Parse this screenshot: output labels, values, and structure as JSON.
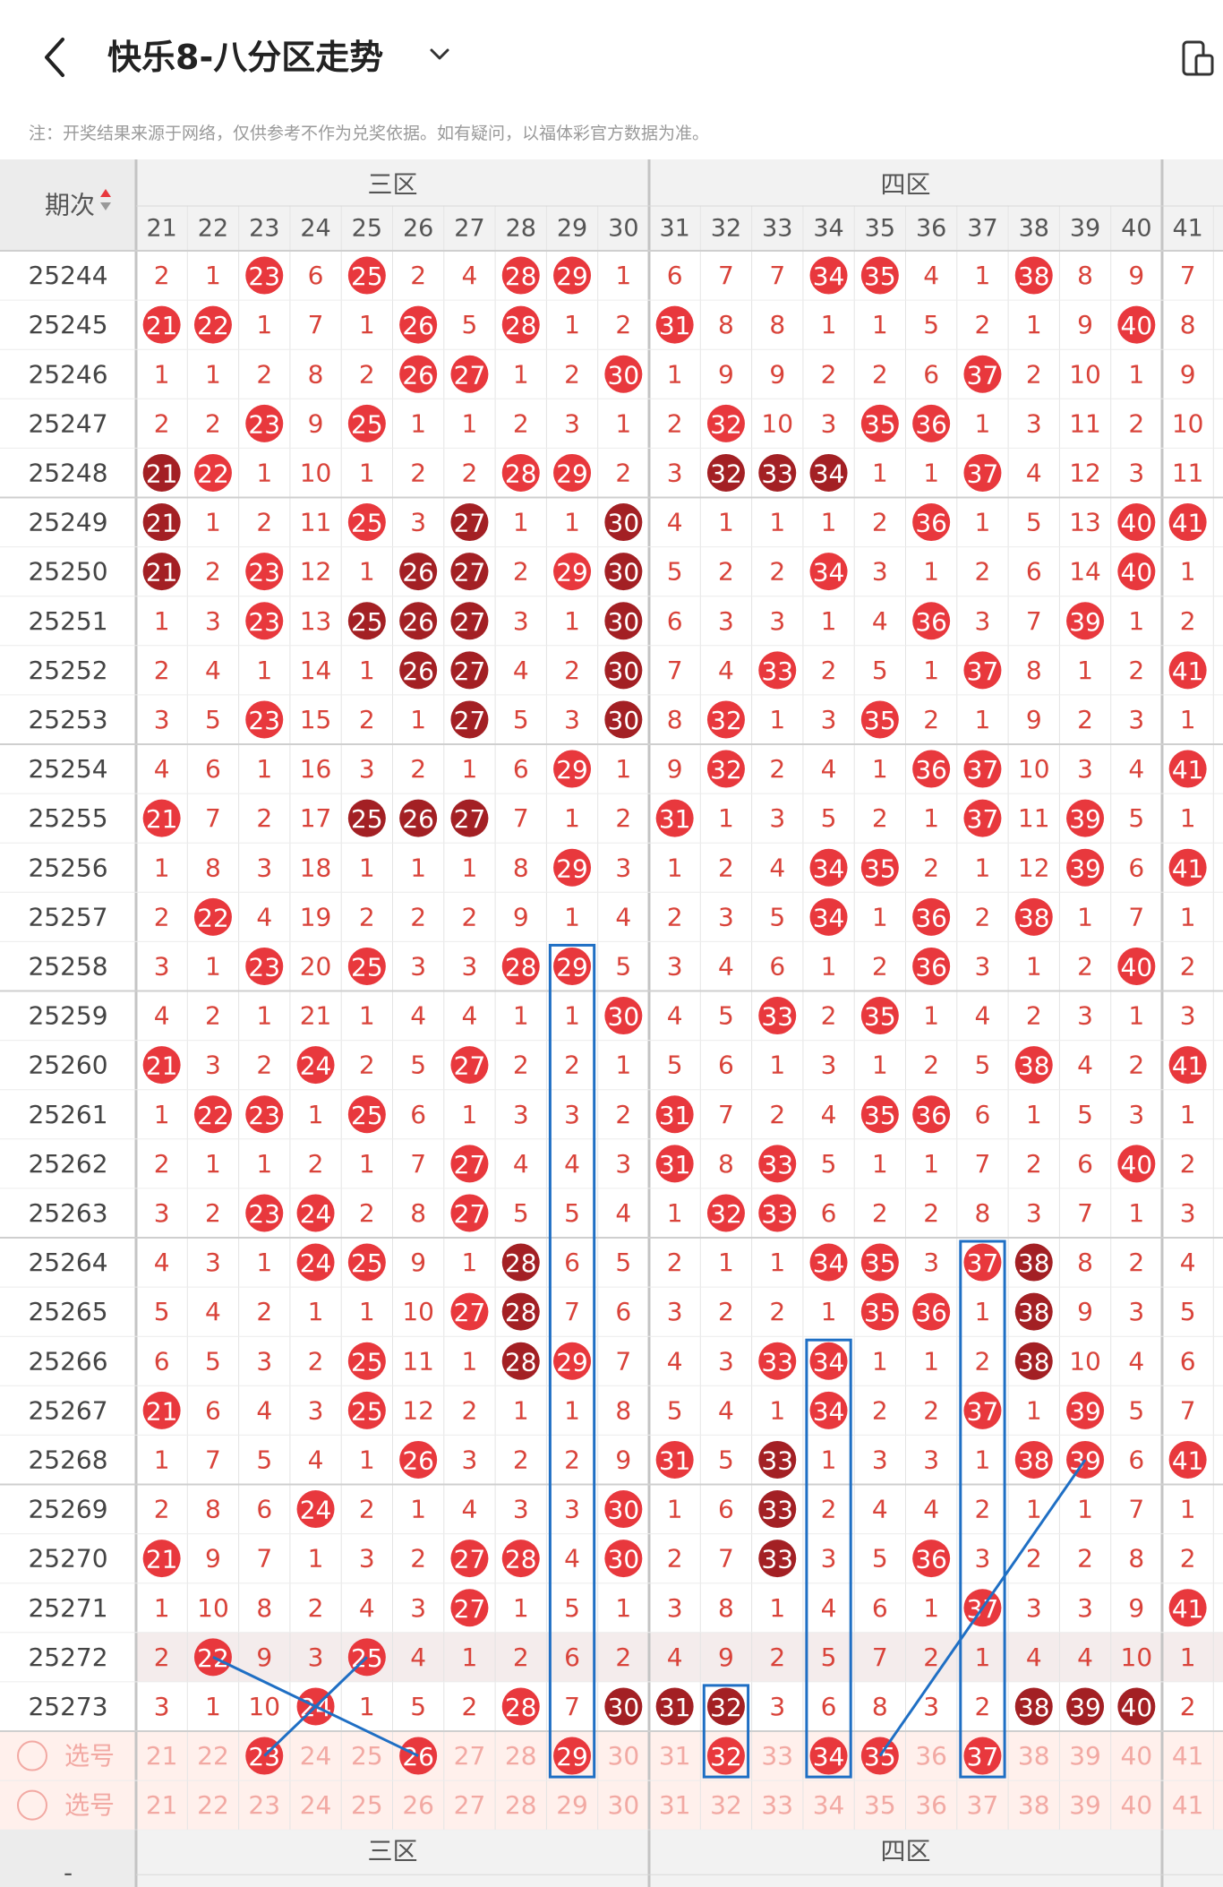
{
  "header": {
    "title": "快乐8-八分区走势",
    "icons": {
      "back": "back-chevron-icon",
      "dropdown": "chevron-down-icon",
      "device": "device-icon"
    }
  },
  "notice": "注：开奖结果来源于网络，仅供参考不作为兑奖依据。如有疑问，以福体彩官方数据为准。",
  "table": {
    "period_label": "期次",
    "zones": [
      "三区",
      "四区"
    ],
    "numbers": [
      21,
      22,
      23,
      24,
      25,
      26,
      27,
      28,
      29,
      30,
      31,
      32,
      33,
      34,
      35,
      36,
      37,
      38,
      39,
      40,
      41
    ],
    "rows": [
      {
        "period": "25244",
        "cells": [
          2,
          1,
          "23",
          6,
          "25",
          2,
          4,
          "28",
          "29",
          1,
          6,
          7,
          7,
          "34",
          "35",
          4,
          1,
          "38",
          8,
          9,
          7
        ]
      },
      {
        "period": "25245",
        "cells": [
          "21",
          "22",
          1,
          7,
          1,
          "26",
          5,
          "28",
          1,
          2,
          "31",
          8,
          8,
          1,
          1,
          5,
          2,
          1,
          9,
          "40",
          8
        ]
      },
      {
        "period": "25246",
        "cells": [
          1,
          1,
          2,
          8,
          2,
          "26",
          "27",
          1,
          2,
          "30",
          1,
          9,
          9,
          2,
          2,
          6,
          "37",
          2,
          10,
          1,
          9
        ]
      },
      {
        "period": "25247",
        "cells": [
          2,
          2,
          "23",
          9,
          "25",
          1,
          1,
          2,
          3,
          1,
          2,
          "32",
          10,
          3,
          "35",
          "36",
          1,
          3,
          11,
          2,
          10
        ]
      },
      {
        "period": "25248",
        "cells": [
          "!21",
          "22",
          1,
          10,
          1,
          2,
          2,
          "28",
          "29",
          2,
          3,
          "!32",
          "!33",
          "!34",
          1,
          1,
          "37",
          4,
          12,
          3,
          11
        ]
      },
      {
        "period": "25249",
        "cells": [
          "!21",
          1,
          2,
          11,
          "25",
          3,
          "!27",
          1,
          1,
          "!30",
          4,
          1,
          1,
          1,
          2,
          "36",
          1,
          5,
          13,
          "40",
          "41"
        ]
      },
      {
        "period": "25250",
        "cells": [
          "!21",
          2,
          "23",
          12,
          1,
          "!26",
          "!27",
          2,
          "29",
          "!30",
          5,
          2,
          2,
          "34",
          3,
          1,
          2,
          6,
          14,
          "40",
          1
        ]
      },
      {
        "period": "25251",
        "cells": [
          1,
          3,
          "23",
          13,
          "!25",
          "!26",
          "!27",
          3,
          1,
          "!30",
          6,
          3,
          3,
          1,
          4,
          "36",
          3,
          7,
          "39",
          1,
          2
        ]
      },
      {
        "period": "25252",
        "cells": [
          2,
          4,
          1,
          14,
          1,
          "!26",
          "!27",
          4,
          2,
          "!30",
          7,
          4,
          "33",
          2,
          5,
          1,
          "37",
          8,
          1,
          2,
          "41"
        ]
      },
      {
        "period": "25253",
        "cells": [
          3,
          5,
          "23",
          15,
          2,
          1,
          "!27",
          5,
          3,
          "!30",
          8,
          "32",
          1,
          3,
          "35",
          2,
          1,
          9,
          2,
          3,
          1
        ]
      },
      {
        "period": "25254",
        "cells": [
          4,
          6,
          1,
          16,
          3,
          2,
          1,
          6,
          "29",
          1,
          9,
          "32",
          2,
          4,
          1,
          "36",
          "37",
          10,
          3,
          4,
          "41"
        ]
      },
      {
        "period": "25255",
        "cells": [
          "21",
          7,
          2,
          17,
          "!25",
          "!26",
          "!27",
          7,
          1,
          2,
          "31",
          1,
          3,
          5,
          2,
          1,
          "37",
          11,
          "39",
          5,
          1
        ]
      },
      {
        "period": "25256",
        "cells": [
          1,
          8,
          3,
          18,
          1,
          1,
          1,
          8,
          "29",
          3,
          1,
          2,
          4,
          "34",
          "35",
          2,
          1,
          12,
          "39",
          6,
          "41"
        ]
      },
      {
        "period": "25257",
        "cells": [
          2,
          "22",
          4,
          19,
          2,
          2,
          2,
          9,
          1,
          4,
          2,
          3,
          5,
          "34",
          1,
          "36",
          2,
          "38",
          1,
          7,
          1
        ]
      },
      {
        "period": "25258",
        "cells": [
          3,
          1,
          "23",
          20,
          "25",
          3,
          3,
          "28",
          "29",
          5,
          3,
          4,
          6,
          1,
          2,
          "36",
          3,
          1,
          2,
          "40",
          2
        ]
      },
      {
        "period": "25259",
        "cells": [
          4,
          2,
          1,
          21,
          1,
          4,
          4,
          1,
          1,
          "30",
          4,
          5,
          "33",
          2,
          "35",
          1,
          4,
          2,
          3,
          1,
          3
        ]
      },
      {
        "period": "25260",
        "cells": [
          "21",
          3,
          2,
          "24",
          2,
          5,
          "27",
          2,
          2,
          1,
          5,
          6,
          1,
          3,
          1,
          2,
          5,
          "38",
          4,
          2,
          "41"
        ]
      },
      {
        "period": "25261",
        "cells": [
          1,
          "22",
          "23",
          1,
          "25",
          6,
          1,
          3,
          3,
          2,
          "31",
          7,
          2,
          4,
          "35",
          "36",
          6,
          1,
          5,
          3,
          1
        ]
      },
      {
        "period": "25262",
        "cells": [
          2,
          1,
          1,
          2,
          1,
          7,
          "27",
          4,
          4,
          3,
          "31",
          8,
          "33",
          5,
          1,
          1,
          7,
          2,
          6,
          "40",
          2
        ]
      },
      {
        "period": "25263",
        "cells": [
          3,
          2,
          "23",
          "24",
          2,
          8,
          "27",
          5,
          5,
          4,
          1,
          "32",
          "33",
          6,
          2,
          2,
          8,
          3,
          7,
          1,
          3
        ]
      },
      {
        "period": "25264",
        "cells": [
          4,
          3,
          1,
          "24",
          "25",
          9,
          1,
          "!28",
          6,
          5,
          2,
          1,
          1,
          "34",
          "35",
          3,
          "37",
          "!38",
          8,
          2,
          4
        ]
      },
      {
        "period": "25265",
        "cells": [
          5,
          4,
          2,
          1,
          1,
          10,
          "27",
          "!28",
          7,
          6,
          3,
          2,
          2,
          1,
          "35",
          "36",
          1,
          "!38",
          9,
          3,
          5
        ]
      },
      {
        "period": "25266",
        "cells": [
          6,
          5,
          3,
          2,
          "25",
          11,
          1,
          "!28",
          "29",
          7,
          4,
          3,
          "33",
          "34",
          1,
          1,
          2,
          "!38",
          10,
          4,
          6
        ]
      },
      {
        "period": "25267",
        "cells": [
          "21",
          6,
          4,
          3,
          "25",
          12,
          2,
          1,
          1,
          8,
          5,
          4,
          1,
          "34",
          2,
          2,
          "37",
          1,
          "39",
          5,
          7
        ]
      },
      {
        "period": "25268",
        "cells": [
          1,
          7,
          5,
          4,
          1,
          "26",
          3,
          2,
          2,
          9,
          "31",
          5,
          "!33",
          1,
          3,
          3,
          1,
          "38",
          "39",
          6,
          "41"
        ]
      },
      {
        "period": "25269",
        "cells": [
          2,
          8,
          6,
          "24",
          2,
          1,
          4,
          3,
          3,
          "30",
          1,
          6,
          "!33",
          2,
          4,
          4,
          2,
          1,
          1,
          7,
          1
        ]
      },
      {
        "period": "25270",
        "cells": [
          "21",
          9,
          7,
          1,
          3,
          2,
          "27",
          "28",
          4,
          "30",
          2,
          7,
          "!33",
          3,
          5,
          "36",
          3,
          2,
          2,
          8,
          2
        ]
      },
      {
        "period": "25271",
        "cells": [
          1,
          10,
          8,
          2,
          4,
          3,
          "27",
          1,
          5,
          1,
          3,
          8,
          1,
          4,
          6,
          1,
          "37",
          3,
          3,
          9,
          "41"
        ]
      },
      {
        "period": "25272",
        "cells": [
          2,
          "22",
          9,
          3,
          "25",
          4,
          1,
          2,
          6,
          2,
          4,
          9,
          2,
          5,
          7,
          2,
          1,
          4,
          4,
          10,
          1
        ]
      },
      {
        "period": "25273",
        "cells": [
          3,
          1,
          10,
          "24",
          1,
          5,
          2,
          "28",
          7,
          "!30",
          "!31",
          "!32",
          3,
          6,
          8,
          3,
          2,
          "!38",
          "!39",
          "!40",
          2
        ]
      }
    ],
    "pick_rows": [
      {
        "label": "选号",
        "selected": [
          23,
          26,
          29,
          32,
          34,
          35,
          37
        ]
      },
      {
        "label": "选号",
        "selected": []
      }
    ],
    "footer_period": "-",
    "footer_zones": [
      "三区",
      "四区"
    ],
    "colors": {
      "ball": "#e8383d",
      "ball_dark": "#a32024",
      "count": "#d9433a",
      "line": "#1f6fc4",
      "pick_bg": "#fff0ec"
    }
  }
}
